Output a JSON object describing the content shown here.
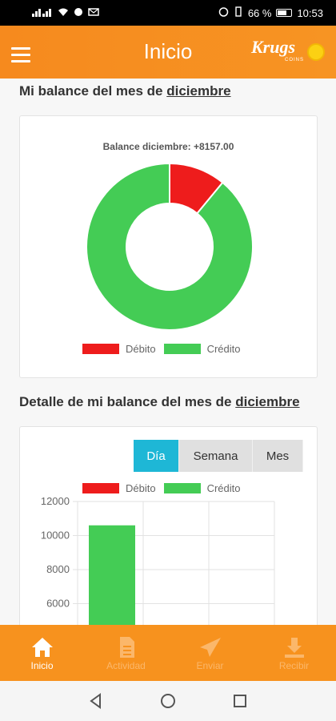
{
  "status_bar": {
    "battery": "66 %",
    "time": "10:53"
  },
  "header": {
    "title": "Inicio",
    "logo_text": "Krugs",
    "logo_sub": "COINS"
  },
  "section1": {
    "title_prefix": "Mi balance del mes de",
    "month": "diciembre"
  },
  "pie_card": {
    "title": "Balance diciembre: +8157.00",
    "legend": [
      {
        "label": "Débito",
        "color": "#ee1c1c"
      },
      {
        "label": "Crédito",
        "color": "#44cc55"
      }
    ]
  },
  "section2": {
    "title_prefix": "Detalle de mi balance del mes de",
    "month": "diciembre"
  },
  "bar_card": {
    "toggle": [
      "Día",
      "Semana",
      "Mes"
    ],
    "active_toggle": "Día",
    "legend": [
      {
        "label": "Débito",
        "color": "#ee1c1c"
      },
      {
        "label": "Crédito",
        "color": "#44cc55"
      }
    ]
  },
  "bottom_nav": [
    {
      "label": "Inicio",
      "icon": "home-icon",
      "active": true
    },
    {
      "label": "Actividad",
      "icon": "document-icon",
      "active": false
    },
    {
      "label": "Enviar",
      "icon": "send-icon",
      "active": false
    },
    {
      "label": "Recibir",
      "icon": "download-icon",
      "active": false
    }
  ],
  "chart_data": [
    {
      "type": "pie",
      "donut": true,
      "title": "Balance diciembre: +8157.00",
      "series": [
        {
          "name": "Débito",
          "value": 11,
          "color": "#ee1c1c"
        },
        {
          "name": "Crédito",
          "value": 89,
          "color": "#44cc55"
        }
      ],
      "legend": "top"
    },
    {
      "type": "bar",
      "series": [
        {
          "name": "Débito",
          "color": "#ee1c1c",
          "values": [
            0,
            0,
            0
          ]
        },
        {
          "name": "Crédito",
          "color": "#44cc55",
          "values": [
            10600,
            0,
            0
          ]
        }
      ],
      "y_ticks": [
        6000,
        8000,
        10000,
        12000
      ],
      "ylim": [
        0,
        12000
      ],
      "grid": true,
      "legend": "top"
    }
  ]
}
